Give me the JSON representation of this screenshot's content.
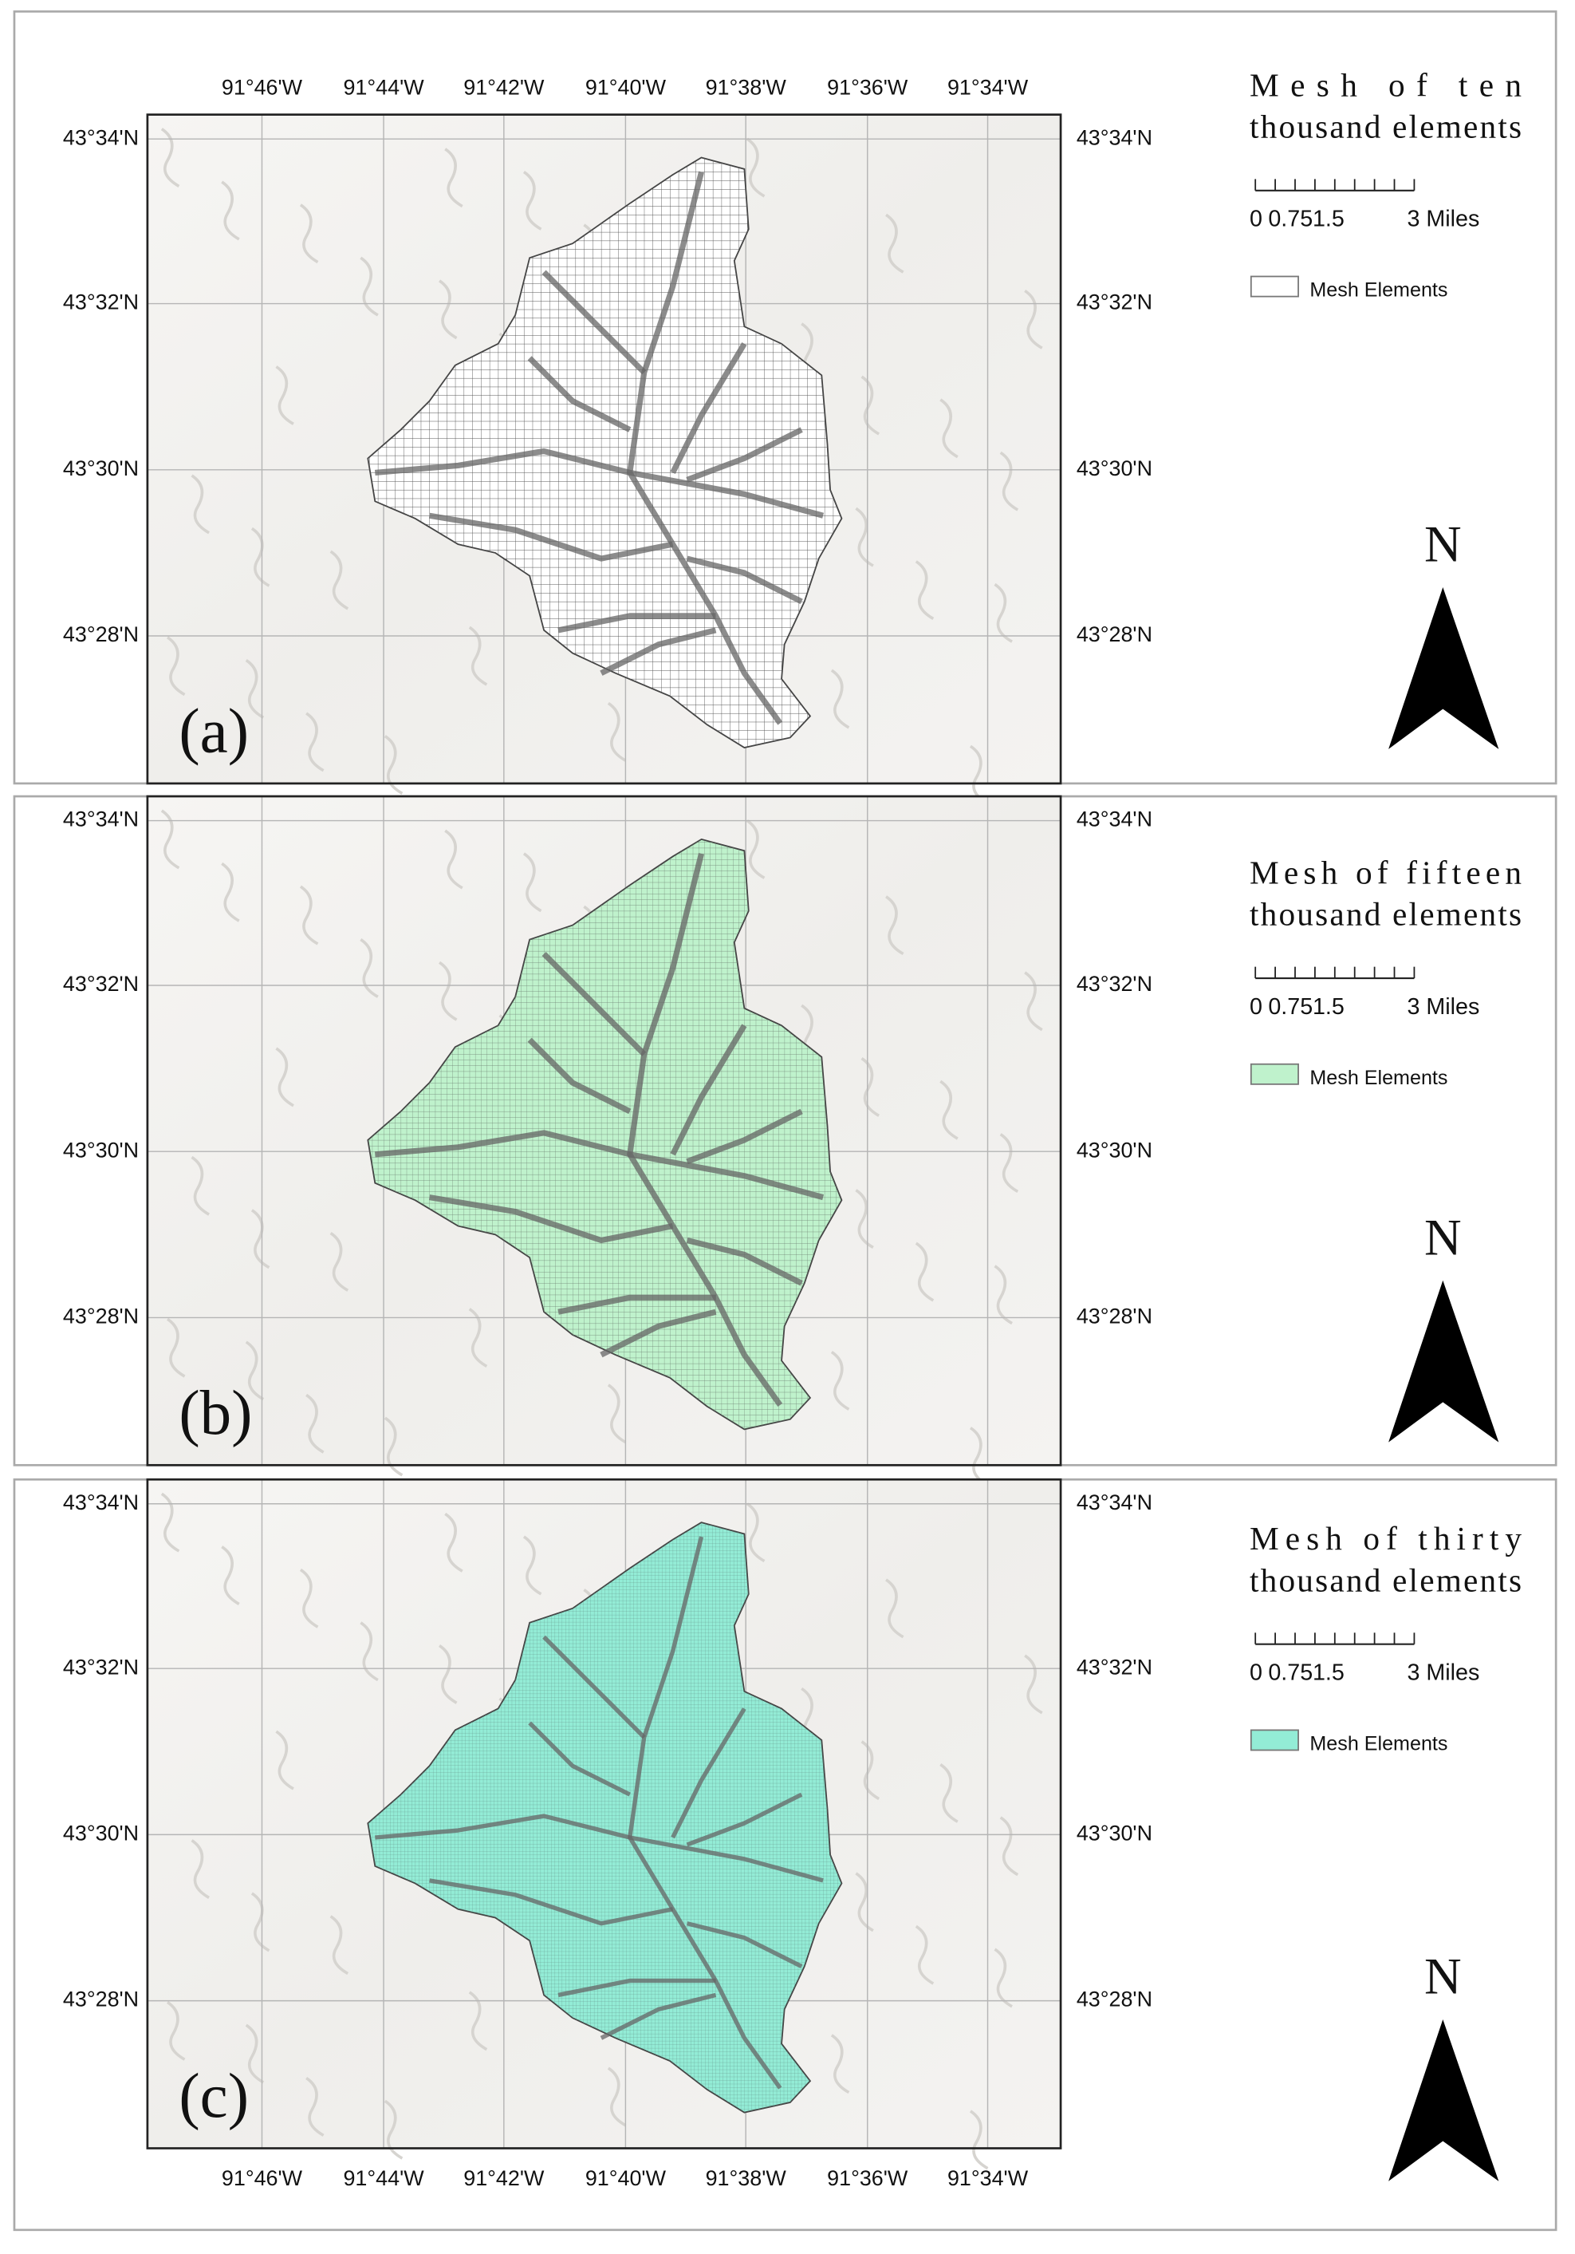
{
  "lon_labels": [
    "91°46'W",
    "91°44'W",
    "91°42'W",
    "91°40'W",
    "91°38'W",
    "91°36'W",
    "91°34'W"
  ],
  "lat_labels": [
    "43°34'N",
    "43°32'N",
    "43°30'N",
    "43°28'N"
  ],
  "panels": [
    {
      "label": "(a)",
      "title": [
        "Mesh of ten",
        "thousand elements"
      ],
      "scale_labels": [
        "0",
        "0.75",
        "1.5",
        "3 Miles"
      ],
      "legend": {
        "label": "Mesh Elements",
        "color": "#ffffff"
      },
      "north": "N"
    },
    {
      "label": "(b)",
      "title": [
        "Mesh of fifteen",
        "thousand elements"
      ],
      "scale_labels": [
        "0",
        "0.75",
        "1.5",
        "3 Miles"
      ],
      "legend": {
        "label": "Mesh Elements",
        "color": "#bff2cc"
      },
      "north": "N"
    },
    {
      "label": "(c)",
      "title": [
        "Mesh of thirty",
        "thousand elements"
      ],
      "scale_labels": [
        "0",
        "0.75",
        "1.5",
        "3 Miles"
      ],
      "legend": {
        "label": "Mesh Elements",
        "color": "#93ecd6"
      },
      "north": "N"
    }
  ]
}
